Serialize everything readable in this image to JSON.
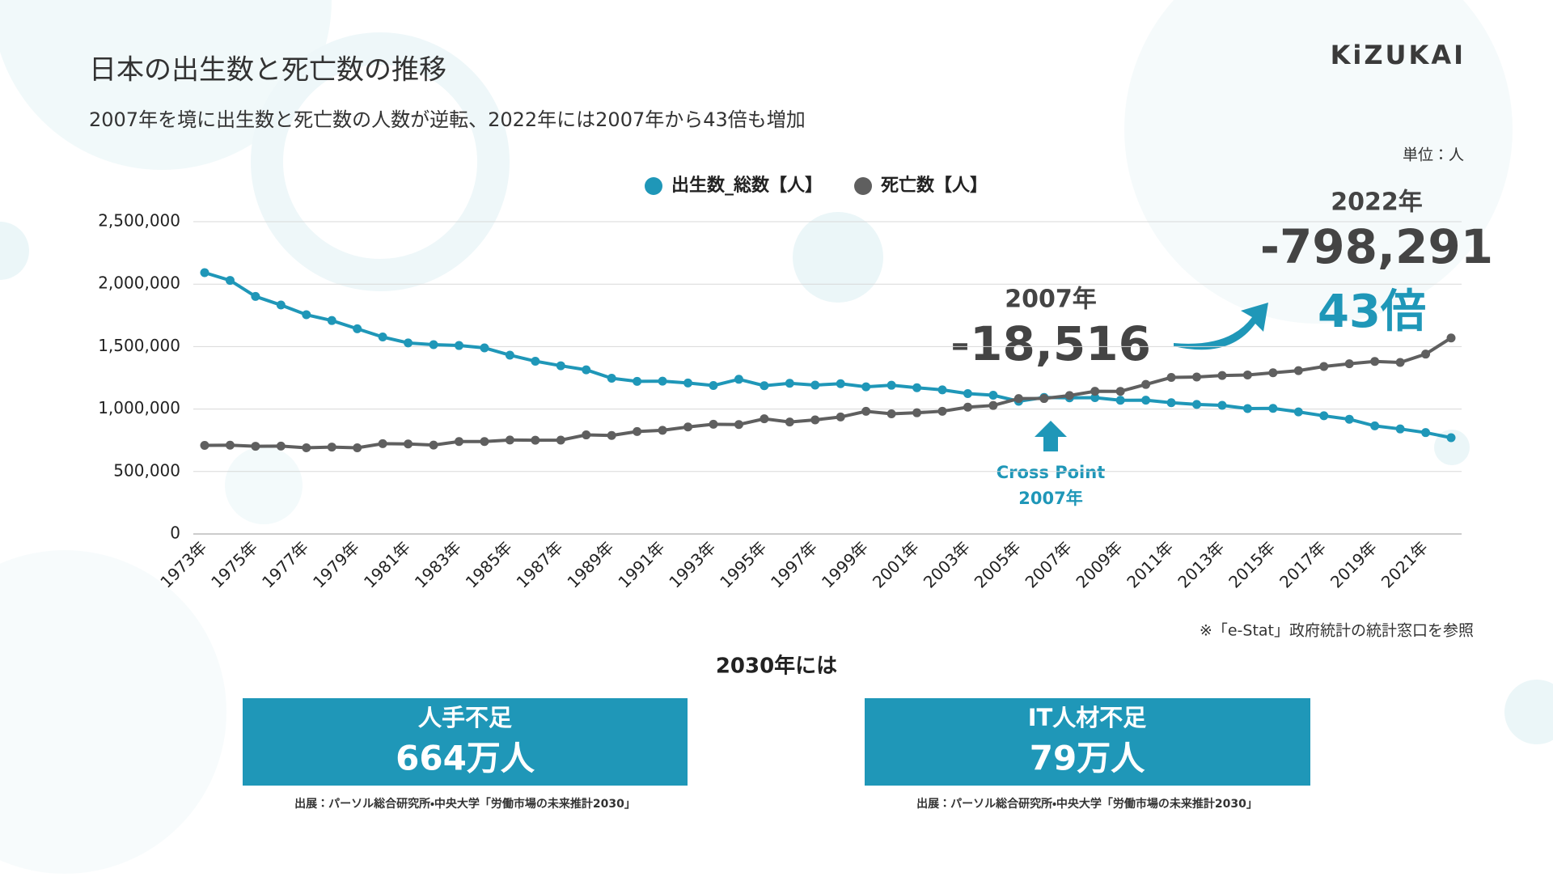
{
  "header": {
    "logo": "KiZUKAI"
  },
  "chart_data": {
    "type": "line",
    "title": "日本の出生数と死亡数の推移",
    "subtitle": "2007年を境に出生数と死亡数の人数が逆転、2022年には2007年から43倍も増加",
    "unit": "単位：人",
    "categories": [
      "1973年",
      null,
      "1975年",
      null,
      "1977年",
      null,
      "1979年",
      null,
      "1981年",
      null,
      "1983年",
      null,
      "1985年",
      null,
      "1987年",
      null,
      "1989年",
      null,
      "1991年",
      null,
      "1993年",
      null,
      "1995年",
      null,
      "1997年",
      null,
      "1999年",
      null,
      "2001年",
      null,
      "2003年",
      null,
      "2005年",
      null,
      "2007年",
      null,
      "2009年",
      null,
      "2011年",
      null,
      "2013年",
      null,
      "2015年",
      null,
      "2017年",
      null,
      "2019年",
      null,
      "2021年",
      null
    ],
    "series": [
      {
        "name": "出生数_総数【人】",
        "color": "#1f97b8",
        "values": [
          2091983,
          2029989,
          1901440,
          1832617,
          1755100,
          1708643,
          1642580,
          1576889,
          1529455,
          1515392,
          1508687,
          1489780,
          1431577,
          1382946,
          1346658,
          1314006,
          1246802,
          1221585,
          1223245,
          1208989,
          1188282,
          1238328,
          1187064,
          1206555,
          1191665,
          1203147,
          1177669,
          1190547,
          1170662,
          1153855,
          1123610,
          1110721,
          1062530,
          1092674,
          1089818,
          1091156,
          1070036,
          1071305,
          1050807,
          1037232,
          1029817,
          1003609,
          1005721,
          977242,
          946146,
          918400,
          865239,
          840835,
          811622,
          770759
        ]
      },
      {
        "name": "死亡数【人】",
        "color": "#5f5f5f",
        "values": [
          709416,
          710510,
          702275,
          703270,
          690074,
          695821,
          689664,
          722801,
          720262,
          711883,
          740038,
          740247,
          752283,
          750620,
          751172,
          793014,
          788594,
          820305,
          829797,
          856643,
          878532,
          875933,
          922139,
          896211,
          913402,
          936484,
          982031,
          961653,
          970331,
          982379,
          1014951,
          1028602,
          1083796,
          1084450,
          1108334,
          1142407,
          1141865,
          1197014,
          1253066,
          1256359,
          1268438,
          1273004,
          1290444,
          1307748,
          1340567,
          1362470,
          1381093,
          1372755,
          1439856,
          1569050
        ]
      }
    ],
    "ylim": [
      0,
      2500000
    ],
    "yticks": [
      0,
      {
        "value": 500000,
        "label": "500,000"
      },
      {
        "value": 1000000,
        "label": "1,000,000"
      },
      {
        "value": 1500000,
        "label": "1,500,000"
      },
      {
        "value": 2000000,
        "label": "2,000,000"
      },
      {
        "value": 2500000,
        "label": "2,500,000"
      }
    ],
    "grid": true,
    "legend": "top",
    "source": "※「e-Stat」政府統計の統計窓口を参照"
  },
  "callouts": {
    "cross_point": {
      "label": "Cross Point",
      "year": "2007年"
    },
    "diff_2007": {
      "year": "2007年",
      "value": "-18,516"
    },
    "diff_2022": {
      "year": "2022年",
      "value": "-798,291",
      "ratio": "43倍"
    }
  },
  "outlook": {
    "heading": "2030年には",
    "boxes": [
      {
        "title": "人手不足",
        "value": "664万人",
        "source": "出展：パーソル総合研究所・中央大学「労働市場の未来推計2030」"
      },
      {
        "title": "IT人材不足",
        "value": "79万人",
        "source": "出展：パーソル総合研究所・中央大学「労働市場の未来推計2030」"
      }
    ]
  }
}
